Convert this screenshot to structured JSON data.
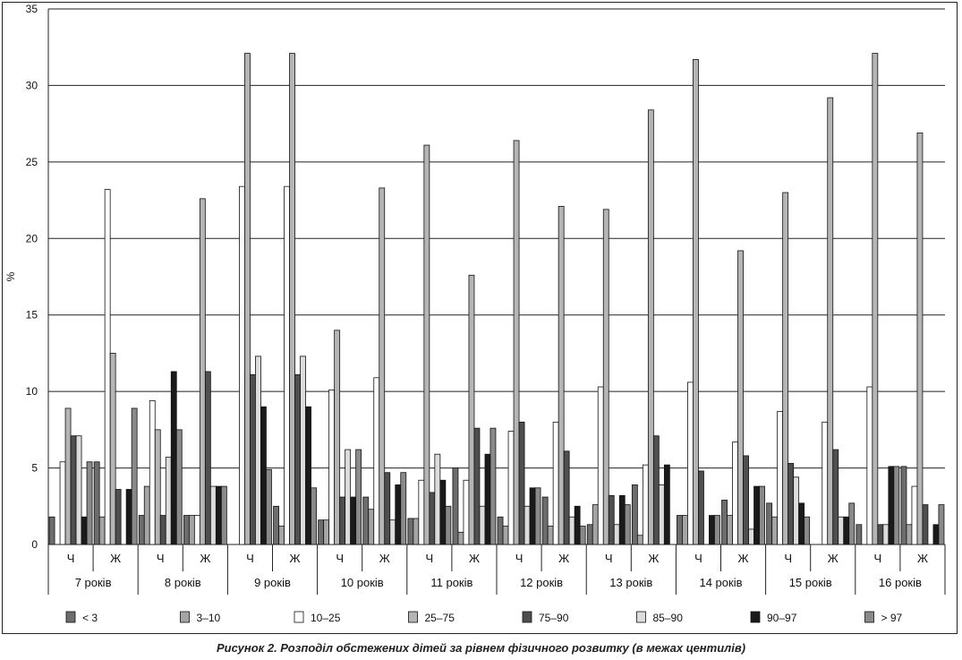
{
  "caption": "Рисунок 2. Розподіл обстежених дітей за рівнем фізичного розвитку (в межах центилів)",
  "chart_data": {
    "type": "bar",
    "title": "",
    "xlabel": "",
    "ylabel": "%",
    "ylim": [
      0,
      35
    ],
    "yticks": [
      0,
      5,
      10,
      15,
      20,
      25,
      30,
      35
    ],
    "grid": true,
    "legend_position": "bottom",
    "age_groups": [
      "7 років",
      "8 років",
      "9 років",
      "10 років",
      "11 років",
      "12 років",
      "13 років",
      "14 років",
      "15 років",
      "16 років"
    ],
    "sexes": [
      "Ч",
      "Ж"
    ],
    "categories": [
      "7 років Ч",
      "7 років Ж",
      "8 років Ч",
      "8 років Ж",
      "9 років Ч",
      "9 років Ж",
      "10 років Ч",
      "10 років Ж",
      "11 років Ч",
      "11 років Ж",
      "12 років Ч",
      "12 років Ж",
      "13 років Ч",
      "13 років Ж",
      "14 років Ч",
      "14 років Ж",
      "15 років Ч",
      "15 років Ж",
      "16 років Ч",
      "16 років Ж"
    ],
    "series": [
      {
        "name": "< 3",
        "color": "#6d6d6d",
        "values": [
          1.8,
          5.4,
          1.9,
          1.9,
          0.0,
          2.5,
          1.6,
          3.1,
          1.7,
          5.0,
          1.8,
          3.1,
          1.3,
          3.9,
          1.9,
          2.9,
          2.7,
          0.0,
          1.3,
          5.1
        ]
      },
      {
        "name": "3–10",
        "color": "#a5a5a5",
        "values": [
          0.0,
          1.8,
          3.8,
          1.9,
          0.0,
          1.2,
          1.6,
          2.3,
          1.7,
          0.8,
          1.2,
          1.2,
          2.6,
          0.6,
          1.9,
          1.9,
          1.8,
          0.0,
          0.0,
          1.3
        ]
      },
      {
        "name": "10–25",
        "color": "#ffffff",
        "values": [
          5.4,
          23.2,
          9.4,
          1.9,
          23.4,
          23.4,
          10.1,
          10.9,
          4.2,
          4.2,
          7.4,
          8.0,
          10.3,
          5.2,
          10.6,
          6.7,
          8.7,
          8.0,
          10.3,
          3.8
        ]
      },
      {
        "name": "25–75",
        "color": "#b5b5b5",
        "values": [
          8.9,
          12.5,
          7.5,
          22.6,
          32.1,
          32.1,
          14.0,
          23.3,
          26.1,
          17.6,
          26.4,
          22.1,
          21.9,
          28.4,
          31.7,
          19.2,
          23.0,
          29.2,
          32.1,
          26.9
        ]
      },
      {
        "name": "75–90",
        "color": "#4f4f4f",
        "values": [
          7.1,
          3.6,
          1.9,
          11.3,
          11.1,
          11.1,
          3.1,
          4.7,
          3.4,
          7.6,
          8.0,
          6.1,
          3.2,
          7.1,
          4.8,
          5.8,
          5.3,
          6.2,
          1.3,
          2.6
        ]
      },
      {
        "name": "85–90",
        "color": "#dcdcdc",
        "values": [
          7.1,
          0.0,
          5.7,
          3.8,
          12.3,
          12.3,
          6.2,
          1.6,
          5.9,
          2.5,
          2.5,
          1.8,
          1.3,
          3.9,
          0.0,
          1.0,
          4.4,
          1.8,
          1.3,
          0.0
        ]
      },
      {
        "name": "90–97",
        "color": "#1a1a1a",
        "values": [
          1.8,
          3.6,
          11.3,
          3.8,
          9.0,
          9.0,
          3.1,
          3.9,
          4.2,
          5.9,
          3.7,
          2.5,
          3.2,
          5.2,
          1.9,
          3.8,
          2.7,
          1.8,
          5.1,
          1.3
        ]
      },
      {
        "name": "> 97",
        "color": "#8a8a8a",
        "values": [
          5.4,
          8.9,
          7.5,
          3.8,
          4.9,
          3.7,
          6.2,
          4.7,
          2.5,
          7.6,
          3.7,
          1.2,
          2.6,
          0.0,
          1.9,
          3.8,
          1.8,
          2.7,
          5.1,
          2.6
        ]
      }
    ]
  }
}
